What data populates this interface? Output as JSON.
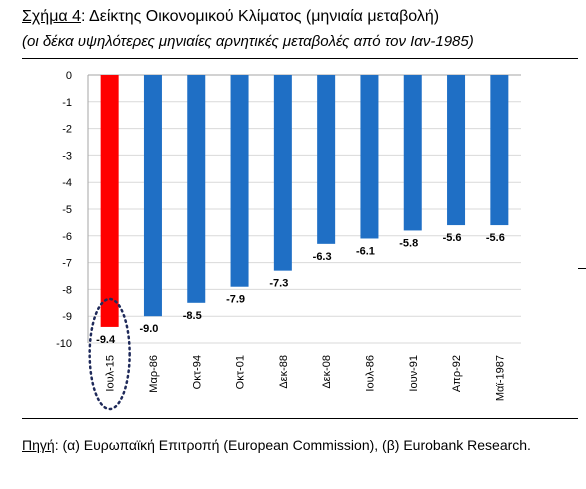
{
  "header": {
    "title_label": "Σχήμα 4",
    "title_text": ": Δείκτης Οικονομικού Κλίματος (μηνιαία μεταβολή)",
    "subtitle": "(οι δέκα υψηλότερες μηνιαίες αρνητικές μεταβολές από τον Ιαν-1985)"
  },
  "footer": {
    "source_label": "Πηγή",
    "source_text": ": (α) Ευρωπαϊκή Επιτροπή (European Commission), (β) Eurobank Research."
  },
  "colors": {
    "highlight": "#ff0000",
    "bar": "#1f6fc5",
    "grid": "#d9d9d9",
    "ellipse": "#1f2a5a"
  },
  "chart_data": {
    "type": "bar",
    "categories": [
      "Ιουλ-15",
      "Μαρ-86",
      "Οκτ-94",
      "Οκτ-01",
      "Δεκ-88",
      "Δεκ-08",
      "Ιουλ-86",
      "Ιουν-91",
      "Απρ-92",
      "Μαϊ-1987"
    ],
    "values": [
      -9.4,
      -9.0,
      -8.5,
      -7.9,
      -7.3,
      -6.3,
      -6.1,
      -5.8,
      -5.6,
      -5.6
    ],
    "data_labels": [
      "-9.4",
      "-9.0",
      "-8.5",
      "-7.9",
      "-7.3",
      "-6.3",
      "-6.1",
      "-5.8",
      "-5.6",
      "-5.6"
    ],
    "yticks": [
      "0",
      "-1",
      "-2",
      "-3",
      "-4",
      "-5",
      "-6",
      "-7",
      "-8",
      "-9",
      "-10"
    ],
    "ylim": [
      -10,
      0
    ],
    "grid": true,
    "legend": "none",
    "highlighted_category": "Ιουλ-15",
    "highlight_marker": "dotted-ellipse"
  }
}
